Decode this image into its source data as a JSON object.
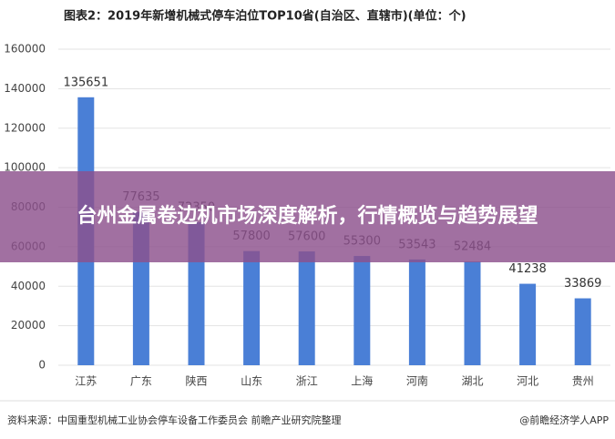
{
  "chart_data": {
    "type": "bar",
    "title": "图表2：2019年新增机械式停车泊位TOP10省(自治区、直辖市)(单位：个)",
    "categories": [
      "江苏",
      "广东",
      "陕西",
      "山东",
      "浙江",
      "上海",
      "河南",
      "湖北",
      "河北",
      "贵州"
    ],
    "values": [
      135651,
      77635,
      72350,
      57800,
      57600,
      55300,
      53543,
      52484,
      41238,
      33869
    ],
    "color": "#4a7fd6",
    "ylim": [
      0,
      160000
    ],
    "yticks": [
      0,
      20000,
      40000,
      60000,
      80000,
      100000,
      120000,
      140000,
      160000
    ],
    "grid": true,
    "source": "资料来源：中国重型机械工业协会停车设备工作委员会 前瞻产业研究院整理",
    "credit": "@前瞻经济学人APP"
  },
  "banner": {
    "title": "台州金属卷边机市场深度解析，行情概览与趋势展望"
  }
}
